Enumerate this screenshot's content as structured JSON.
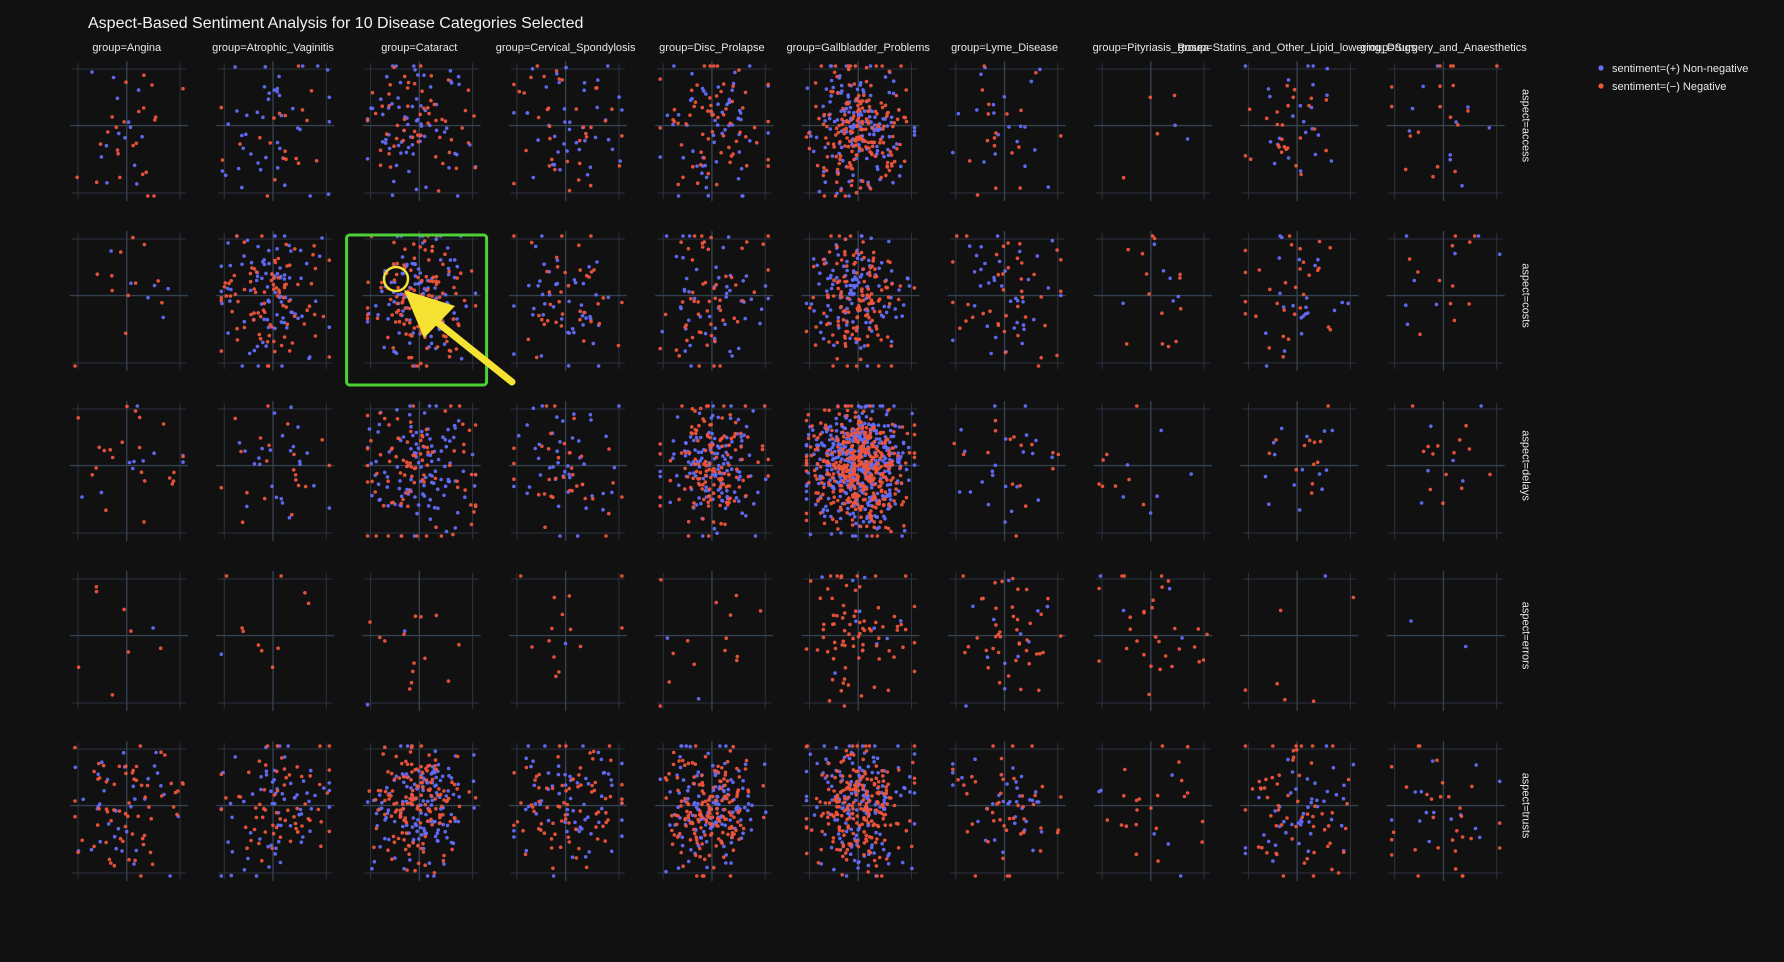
{
  "chart_data": {
    "type": "scatter",
    "title": "Aspect-Based Sentiment Analysis for 10 Disease Categories Selected",
    "facet_col_labels": [
      "group=Angina",
      "group=Atrophic_Vaginitis",
      "group=Cataract",
      "group=Cervical_Spondylosis",
      "group=Disc_Prolapse",
      "group=Gallbladder_Problems",
      "group=Lyme_Disease",
      "group=Pityriasis_Rosea",
      "group=Statins_and_Other_Lipid_lowering_Drugs",
      "group=Surgery_and_Anaesthetics"
    ],
    "facet_row_labels": [
      "aspect=access",
      "aspect=costs",
      "aspect=delays",
      "aspect=errors",
      "aspect=trusts"
    ],
    "legend": {
      "position": "top-right",
      "entries": [
        {
          "name": "sentiment=(+) Non-negative",
          "color": "#636efa"
        },
        {
          "name": "sentiment=(−) Negative",
          "color": "#ef553b"
        }
      ]
    },
    "xlim": [
      -1,
      1
    ],
    "ylim": [
      -1,
      1
    ],
    "grid": true,
    "colors": {
      "non_negative": "#636efa",
      "negative": "#ef553b"
    },
    "point_counts": [
      [
        [
          14,
          24
        ],
        [
          42,
          20
        ],
        [
          70,
          56
        ],
        [
          40,
          36
        ],
        [
          58,
          64
        ],
        [
          150,
          190
        ],
        [
          20,
          18
        ],
        [
          2,
          4
        ],
        [
          24,
          26
        ],
        [
          10,
          18
        ]
      ],
      [
        [
          6,
          12
        ],
        [
          84,
          90
        ],
        [
          110,
          130
        ],
        [
          44,
          38
        ],
        [
          50,
          56
        ],
        [
          120,
          140
        ],
        [
          36,
          40
        ],
        [
          6,
          14
        ],
        [
          22,
          30
        ],
        [
          8,
          12
        ]
      ],
      [
        [
          10,
          22
        ],
        [
          24,
          20
        ],
        [
          110,
          90
        ],
        [
          44,
          36
        ],
        [
          130,
          140
        ],
        [
          420,
          400
        ],
        [
          22,
          16
        ],
        [
          6,
          8
        ],
        [
          14,
          12
        ],
        [
          6,
          14
        ]
      ],
      [
        [
          1,
          8
        ],
        [
          1,
          10
        ],
        [
          2,
          14
        ],
        [
          1,
          14
        ],
        [
          2,
          14
        ],
        [
          10,
          80
        ],
        [
          12,
          42
        ],
        [
          4,
          30
        ],
        [
          1,
          6
        ],
        [
          2,
          0
        ]
      ],
      [
        [
          36,
          64
        ],
        [
          66,
          64
        ],
        [
          140,
          150
        ],
        [
          64,
          78
        ],
        [
          130,
          170
        ],
        [
          160,
          220
        ],
        [
          34,
          46
        ],
        [
          6,
          22
        ],
        [
          44,
          60
        ],
        [
          14,
          30
        ]
      ]
    ]
  },
  "annotation": {
    "highlight_color": "#4cd137",
    "arrow_color": "#f6e233"
  }
}
